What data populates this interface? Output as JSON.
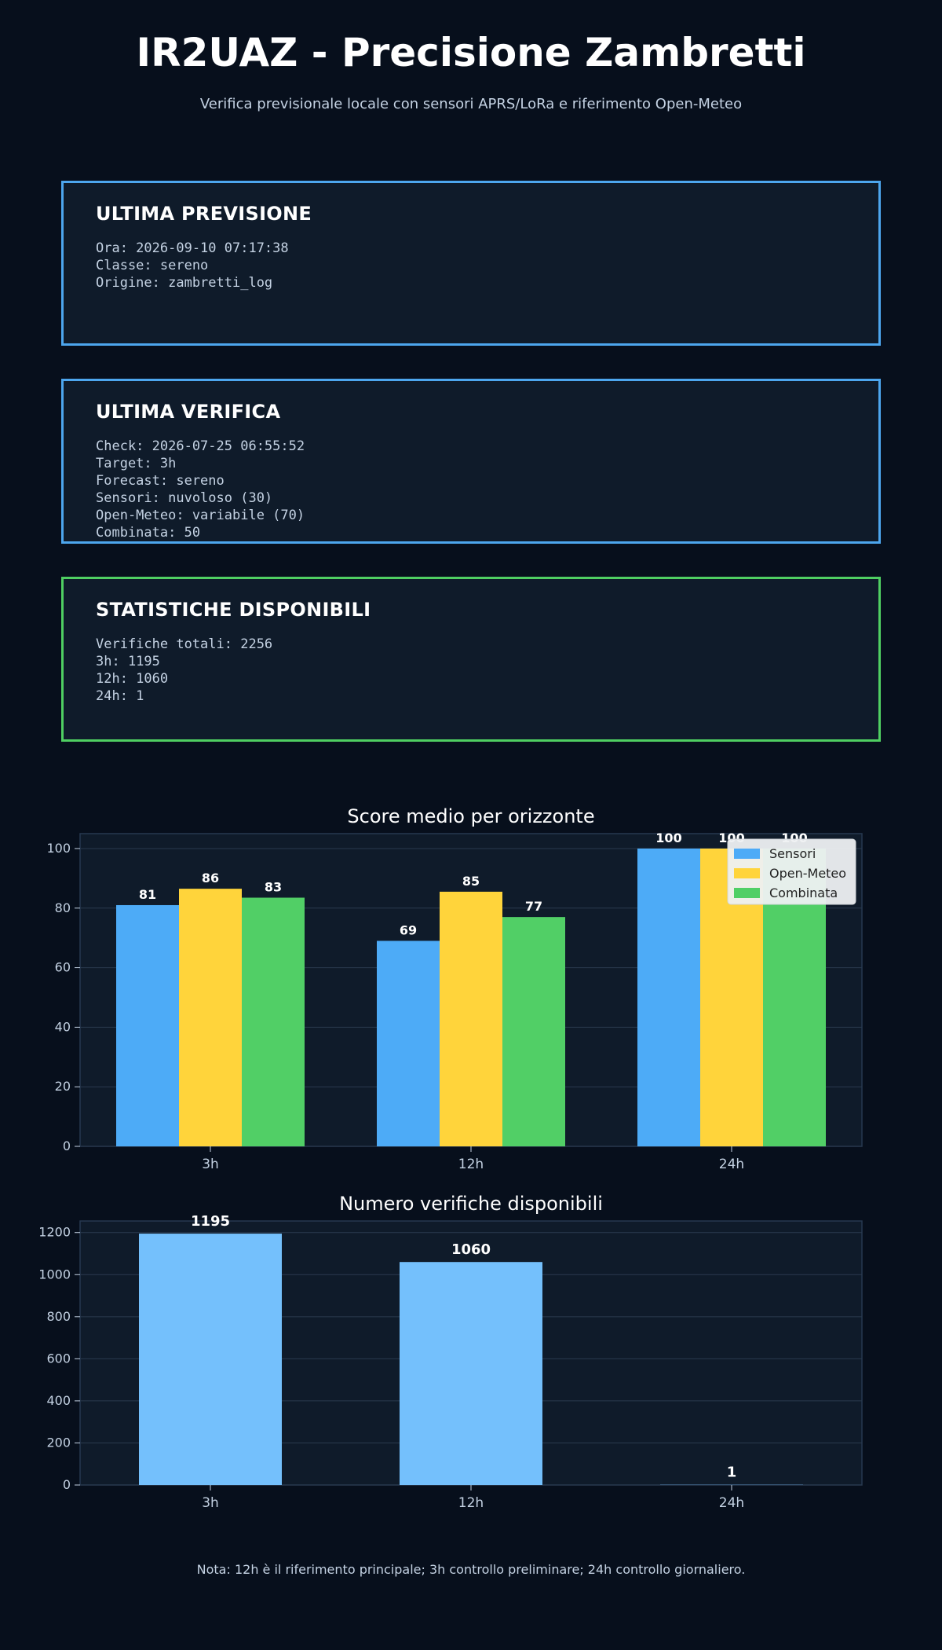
{
  "header": {
    "title": "IR2UAZ - Precisione Zambretti",
    "subtitle": "Verifica previsionale locale con sensori APRS/LoRa e riferimento Open-Meteo"
  },
  "cards": [
    {
      "title": "ULTIMA PREVISIONE",
      "border": "#4da6ee",
      "lines": [
        "Ora: 2026-09-10 07:17:38",
        "Classe: sereno",
        "Origine: zambretti_log"
      ]
    },
    {
      "title": "ULTIMA VERIFICA",
      "border": "#4da6ee",
      "lines": [
        "Check: 2026-07-25 06:55:52",
        "Target: 3h",
        "Forecast: sereno",
        "Sensori: nuvoloso (30)",
        "Open-Meteo: variabile (70)",
        "Combinata: 50"
      ]
    },
    {
      "title": "STATISTICHE DISPONIBILI",
      "border": "#4fcf62",
      "lines": [
        "Verifiche totali: 2256",
        "3h: 1195",
        "12h: 1060",
        "24h: 1"
      ]
    }
  ],
  "chart_data": [
    {
      "type": "bar",
      "title": "Score medio per orizzonte",
      "xlabel": "",
      "ylabel": "",
      "categories": [
        "3h",
        "12h",
        "24h"
      ],
      "series": [
        {
          "name": "Sensori",
          "values": [
            81,
            69,
            100
          ],
          "labels": [
            "81",
            "69",
            "100"
          ],
          "color": "#4dabf7"
        },
        {
          "name": "Open-Meteo",
          "values": [
            86.5,
            85.5,
            100
          ],
          "labels": [
            "86",
            "85",
            "100"
          ],
          "color": "#ffd43b"
        },
        {
          "name": "Combinata",
          "values": [
            83.5,
            77,
            100
          ],
          "labels": [
            "83",
            "77",
            "100"
          ],
          "color": "#51cf66"
        }
      ],
      "ylim": [
        0,
        105
      ],
      "yticks": [
        0,
        20,
        40,
        60,
        80,
        100
      ],
      "grid": true,
      "legend": "top-right"
    },
    {
      "type": "bar",
      "title": "Numero verifiche disponibili",
      "xlabel": "",
      "ylabel": "",
      "categories": [
        "3h",
        "12h",
        "24h"
      ],
      "values": [
        1195,
        1060,
        1
      ],
      "labels": [
        "1195",
        "1060",
        "1"
      ],
      "color": "#74c0fc",
      "ylim": [
        0,
        1255
      ],
      "yticks": [
        0,
        200,
        400,
        600,
        800,
        1000,
        1200
      ],
      "grid": true
    }
  ],
  "footer": {
    "note": "Nota: 12h è il riferimento principale; 3h controllo preliminare; 24h controllo giornaliero."
  }
}
